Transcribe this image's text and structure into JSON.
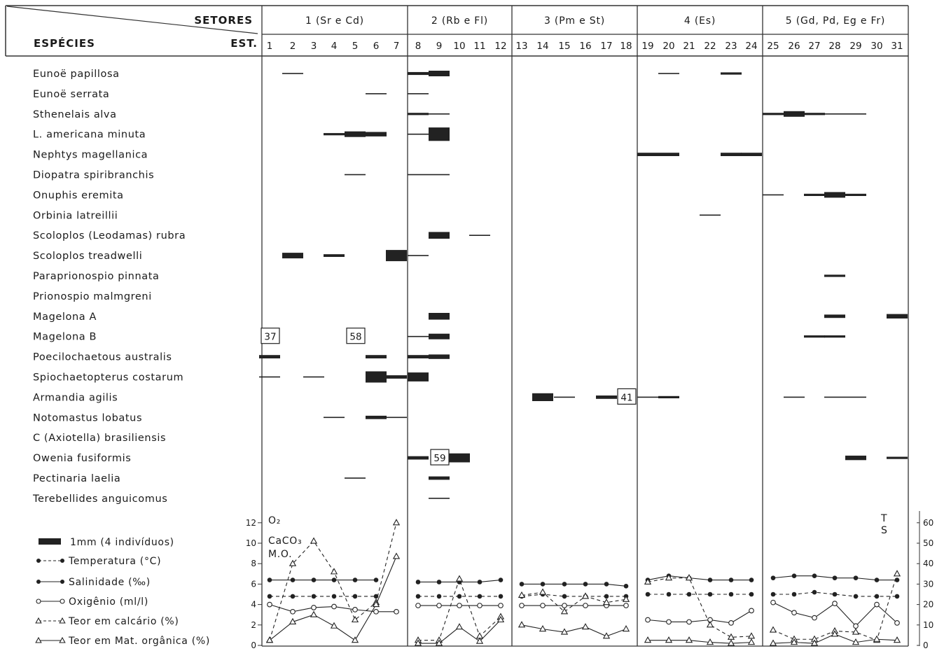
{
  "header": {
    "setores_label": "SETORES",
    "especies_label": "ESPÉCIES",
    "est_label": "EST."
  },
  "sectors": [
    {
      "label": "1 (Sr e Cd)",
      "stations": [
        1,
        7
      ]
    },
    {
      "label": "2 (Rb e Fl)",
      "stations": [
        8,
        12
      ]
    },
    {
      "label": "3 (Pm e St)",
      "stations": [
        13,
        18
      ]
    },
    {
      "label": "4 (Es)",
      "stations": [
        19,
        24
      ]
    },
    {
      "label": "5 (Gd, Pd, Eg e Fr)",
      "stations": [
        25,
        31
      ]
    }
  ],
  "stations": [
    "1",
    "2",
    "3",
    "4",
    "5",
    "6",
    "7",
    "8",
    "9",
    "10",
    "11",
    "12",
    "13",
    "14",
    "15",
    "16",
    "17",
    "18",
    "19",
    "20",
    "21",
    "22",
    "23",
    "24",
    "25",
    "26",
    "27",
    "28",
    "29",
    "30",
    "31"
  ],
  "species": [
    "Eunoë papillosa",
    "Eunoë serrata",
    "Sthenelais alva",
    "L. americana minuta",
    "Nephtys magellanica",
    "Diopatra spiribranchis",
    "Onuphis eremita",
    "Orbinia latreillii",
    "Scoloplos (Leodamas) rubra",
    "Scoloplos treadwelli",
    "Paraprionospio pinnata",
    "Prionospio malmgreni",
    "Magelona A",
    "Magelona B",
    "Poecilochaetous australis",
    "Spiochaetopterus costarum",
    "Armandia agilis",
    "Notomastus lobatus",
    "C (Axiotella) brasiliensis",
    "Owenia fusiformis",
    "Pectinaria laelia",
    "Terebellides anguicomus"
  ],
  "legend": {
    "bar": "1mm (4 indivíduos)",
    "temperature": "Temperatura (°C)",
    "salinity": "Salinidade (‰)",
    "oxygen": "Oxigênio (ml/l)",
    "calcium": "Teor em calcário (%)",
    "organic": "Teor em Mat. orgânica (%)"
  },
  "axes": {
    "left_labels": [
      "O₂",
      "CaCO₃",
      "M.O."
    ],
    "left_ticks": [
      0,
      2,
      4,
      6,
      8,
      10,
      12
    ],
    "left_range": [
      0,
      12
    ],
    "right_labels": [
      "T",
      "S"
    ],
    "right_ticks": [
      0,
      10,
      20,
      30,
      40,
      50,
      60
    ],
    "right_range": [
      0,
      60
    ]
  },
  "chart_data": {
    "type": "bar",
    "description_units": "kite diagram: abundance per station (1 mm = 4 individuals)",
    "abundance": [
      {
        "species": "Eunoë papillosa",
        "values": {
          "2": 0.5,
          "8": 1.3,
          "9": 2.5,
          "20": 0.5,
          "23": 1
        }
      },
      {
        "species": "Eunoë serrata",
        "values": {
          "6": 0.5,
          "8": 0.5
        }
      },
      {
        "species": "Sthenelais alva",
        "values": {
          "8": 1,
          "9": 0.5,
          "25": 1,
          "26": 2.5,
          "27": 1,
          "28": 0.5,
          "29": 0.5
        }
      },
      {
        "species": "L. americana minuta",
        "values": {
          "4": 1,
          "5": 2.5,
          "6": 2,
          "8": 0.5,
          "9": 6
        }
      },
      {
        "species": "Nephtys magellanica",
        "values": {
          "19": 1.5,
          "20": 1.5,
          "23": 1.5,
          "24": 1.5
        }
      },
      {
        "species": "Diopatra spiribranchis",
        "values": {
          "5": 0.5,
          "8": 0.5,
          "9": 0.5
        }
      },
      {
        "species": "Onuphis eremita",
        "values": {
          "25": 0.5,
          "27": 1,
          "28": 2.5,
          "29": 1
        }
      },
      {
        "species": "Orbinia latreillii",
        "values": {
          "22": 0.5
        }
      },
      {
        "species": "Scoloplos (Leodamas) rubra",
        "values": {
          "9": 3,
          "11": 0.5
        }
      },
      {
        "species": "Scoloplos treadwelli",
        "values": {
          "2": 2.5,
          "4": 1.2,
          "7": 5,
          "8": 0.5
        }
      },
      {
        "species": "Paraprionospio pinnata",
        "values": {
          "28": 1
        }
      },
      {
        "species": "Prionospio malmgreni",
        "values": {}
      },
      {
        "species": "Magelona A",
        "values": {
          "9": 3,
          "28": 1.5,
          "31": 2
        }
      },
      {
        "species": "Magelona B",
        "values": {
          "1": 37,
          "5": 58,
          "8": 0.5,
          "9": 2.5,
          "27": 1,
          "28": 1
        }
      },
      {
        "species": "Poecilochaetous australis",
        "values": {
          "1": 1.5,
          "6": 1.5,
          "8": 1.5,
          "9": 2
        }
      },
      {
        "species": "Spiochaetopterus costarum",
        "values": {
          "1": 0.5,
          "3": 0.5,
          "6": 5,
          "7": 1.5,
          "8": 4
        }
      },
      {
        "species": "Armandia agilis",
        "values": {
          "14": 3.5,
          "15": 0.5,
          "17": 1.5,
          "18": 41,
          "19": 0.5,
          "20": 1,
          "26": 0.5,
          "28": 0.5,
          "29": 0.5
        }
      },
      {
        "species": "Notomastus lobatus",
        "values": {
          "4": 0.5,
          "6": 1.5,
          "7": 0.5
        }
      },
      {
        "species": "C (Axiotella) brasiliensis",
        "values": {}
      },
      {
        "species": "Owenia fusiformis",
        "values": {
          "8": 1.5,
          "9": 59,
          "10": 4,
          "29": 2,
          "31": 1
        }
      },
      {
        "species": "Pectinaria laelia",
        "values": {
          "5": 0.5,
          "9": 1.5
        }
      },
      {
        "species": "Terebellides anguicomus",
        "values": {
          "9": 0.5
        }
      }
    ],
    "value_labels": [
      {
        "station": 1,
        "species": "Magelona B",
        "value": "37"
      },
      {
        "station": 5,
        "species": "Magelona B",
        "value": "58"
      },
      {
        "station": 18,
        "species": "Armandia agilis",
        "value": "41"
      },
      {
        "station": 9,
        "species": "Owenia fusiformis",
        "value": "59"
      }
    ],
    "environment": {
      "salinity": [
        32,
        32,
        32,
        32,
        32,
        32,
        null,
        31,
        31,
        31,
        31,
        32,
        30,
        30,
        30,
        30,
        30,
        29,
        32,
        34,
        33,
        32,
        32,
        32,
        33,
        34,
        34,
        33,
        33,
        32,
        32
      ],
      "temperature": [
        24,
        24,
        24,
        24,
        24,
        24,
        null,
        24,
        24,
        24,
        24,
        24,
        24,
        25,
        24,
        24,
        24,
        24,
        25,
        25,
        25,
        25,
        25,
        25,
        25,
        25,
        26,
        25,
        24,
        24,
        24
      ],
      "oxygen": [
        4,
        3.3,
        3.7,
        3.8,
        3.5,
        3.3,
        3.3,
        3.9,
        3.9,
        3.9,
        3.9,
        3.9,
        3.9,
        3.9,
        3.9,
        3.9,
        3.9,
        3.9,
        2.5,
        2.3,
        2.3,
        2.5,
        2.2,
        3.4,
        4.2,
        3.2,
        2.7,
        4.1,
        1.9,
        4,
        2.2
      ],
      "calcium": [
        0.5,
        8,
        10.2,
        7.2,
        2.5,
        4.2,
        12,
        0.5,
        0.5,
        6.5,
        0.9,
        2.8,
        4.9,
        5.2,
        3.3,
        4.8,
        4.2,
        4.5,
        6.2,
        6.6,
        6.6,
        2,
        0.8,
        0.9,
        1.5,
        0.6,
        0.6,
        1.4,
        1.3,
        0.5,
        7
      ],
      "organic": [
        0.5,
        2.3,
        3,
        1.9,
        0.5,
        4,
        8.7,
        0.2,
        0.2,
        1.8,
        0.4,
        2.5,
        2,
        1.6,
        1.3,
        1.8,
        0.9,
        1.6,
        0.5,
        0.5,
        0.5,
        0.3,
        0.2,
        0.3,
        0.2,
        0.3,
        0.2,
        1.1,
        0.3,
        0.6,
        0.5
      ]
    }
  }
}
